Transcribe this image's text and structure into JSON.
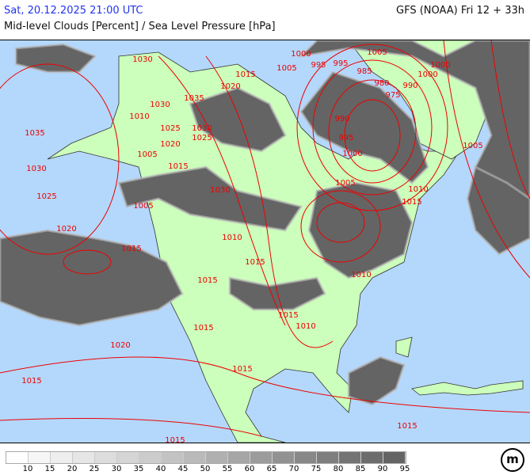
{
  "header": {
    "valid_time": "Sat, 20.12.2025 21:00 UTC",
    "parameter": "Mid-level Clouds [Percent] / Sea Level Pressure [hPa]",
    "model_run": "GFS (NOAA) Fri 12 + 33h"
  },
  "colors": {
    "ocean": "#b4d8fc",
    "land": "#ccffbb",
    "cloud": "#646464",
    "isobar": "#ee0000",
    "coast": "#333333"
  },
  "isobar_labels": [
    "1030",
    "1015",
    "1005",
    "1000",
    "995",
    "1005",
    "1000",
    "995",
    "985",
    "990",
    "1000",
    "975",
    "980",
    "1020",
    "1035",
    "1030",
    "1010",
    "1035",
    "1025",
    "1030",
    "1025",
    "1020",
    "1005",
    "990",
    "995",
    "1000",
    "1005",
    "1015",
    "1030",
    "1005",
    "1030",
    "1010",
    "1025",
    "1015",
    "1005",
    "1020",
    "1010",
    "1015",
    "1015",
    "1010",
    "1015",
    "1015",
    "1010",
    "1015",
    "1020",
    "1015",
    "1015",
    "1015",
    "1015"
  ],
  "legend": {
    "colors": [
      "#ffffff",
      "#f6f6f6",
      "#eeeeee",
      "#e6e6e6",
      "#dddddd",
      "#d5d5d5",
      "#cccccc",
      "#c3c3c3",
      "#bababa",
      "#b0b0b0",
      "#a6a6a6",
      "#9c9c9c",
      "#929292",
      "#888888",
      "#7e7e7e",
      "#747474",
      "#6c6c6c",
      "#646464"
    ],
    "ticks": [
      "10",
      "15",
      "20",
      "25",
      "30",
      "35",
      "40",
      "45",
      "50",
      "55",
      "60",
      "65",
      "70",
      "75",
      "80",
      "85",
      "90",
      "95"
    ]
  },
  "logo": {
    "text": "m"
  }
}
